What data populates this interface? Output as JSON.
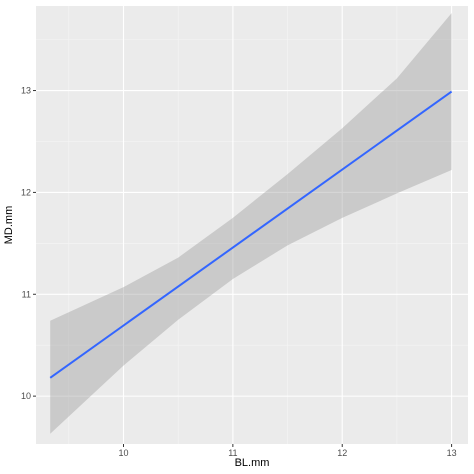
{
  "chart_data": {
    "type": "line",
    "title": "",
    "xlabel": "BL.mm",
    "ylabel": "MD.mm",
    "xlim": [
      9.2,
      13.15
    ],
    "ylim": [
      9.53,
      13.83
    ],
    "x_ticks": [
      10,
      11,
      12,
      13
    ],
    "x_ticks_minor": [
      9.5,
      10.5,
      11.5,
      12.5
    ],
    "y_ticks": [
      10,
      11,
      12,
      13
    ],
    "y_ticks_minor": [
      10.5,
      11.5,
      12.5,
      13.5
    ],
    "grid": true,
    "series": [
      {
        "kind": "fit-line",
        "color": "#3366FF",
        "x": [
          9.33,
          13.0
        ],
        "y": [
          10.18,
          12.99
        ]
      }
    ],
    "confidence_band": {
      "color": "#999999",
      "opacity": 0.4,
      "x": [
        9.33,
        10.0,
        10.5,
        11.0,
        11.5,
        12.0,
        12.5,
        13.0
      ],
      "upper": [
        10.74,
        11.07,
        11.36,
        11.75,
        12.18,
        12.63,
        13.12,
        13.76
      ],
      "lower": [
        9.63,
        10.3,
        10.75,
        11.15,
        11.48,
        11.75,
        11.99,
        12.22
      ]
    }
  }
}
